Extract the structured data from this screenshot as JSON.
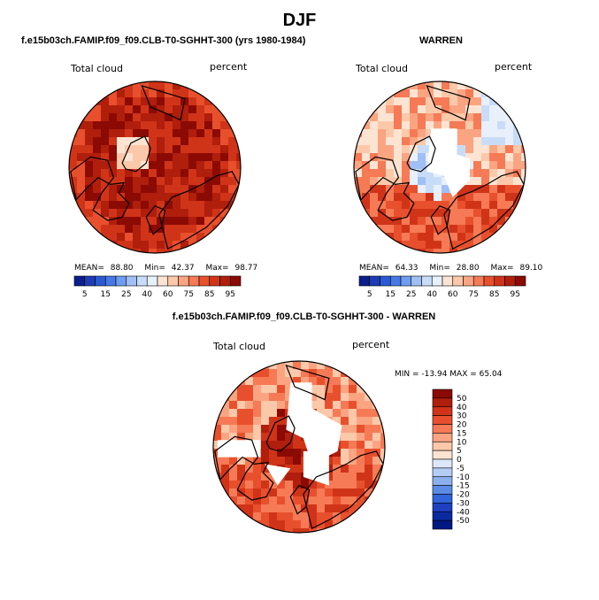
{
  "main_title": "DJF",
  "panels": {
    "model": {
      "title": "f.e15b03ch.FAMIP.f09_f09.CLB-T0-SGHHT-300 (yrs 1980-1984)",
      "variable": "Total cloud",
      "units": "percent",
      "stats": {
        "mean_label": "MEAN=",
        "mean": "88.80",
        "min_label": "Min=",
        "min": "42.37",
        "max_label": "Max=",
        "max": "98.77"
      }
    },
    "obs": {
      "title": "WARREN",
      "variable": "Total cloud",
      "units": "percent",
      "stats": {
        "mean_label": "MEAN=",
        "mean": "64.33",
        "min_label": "Min=",
        "min": "28.80",
        "max_label": "Max=",
        "max": "89.10"
      }
    },
    "diff": {
      "title": "f.e15b03ch.FAMIP.f09_f09.CLB-T0-SGHHT-300 - WARREN",
      "variable": "Total cloud",
      "units": "percent",
      "minmax_text": "MIN = -13.94 MAX =  65.04"
    }
  },
  "chart_data": [
    {
      "type": "heatmap",
      "title": "f.e15b03ch.FAMIP.f09_f09.CLB-T0-SGHHT-300 (yrs 1980-1984)",
      "projection": "north polar stereographic",
      "variable": "Total cloud",
      "units": "percent",
      "mean": 88.8,
      "min": 42.37,
      "max": 98.77,
      "colorbar_ticks": [
        "5",
        "15",
        "25",
        "40",
        "60",
        "75",
        "85",
        "95"
      ],
      "colorbar_colors": [
        "#0a1e8c",
        "#1e3cb4",
        "#2a5ad2",
        "#4678e6",
        "#6e9cf0",
        "#a0c0f5",
        "#c8dcf8",
        "#e8f0fc",
        "#fde4d2",
        "#fcc8aa",
        "#fba482",
        "#f57a55",
        "#e8502d",
        "#d03418",
        "#b01e0c",
        "#8c0a04"
      ]
    },
    {
      "type": "heatmap",
      "title": "WARREN",
      "projection": "north polar stereographic",
      "variable": "Total cloud",
      "units": "percent",
      "mean": 64.33,
      "min": 28.8,
      "max": 89.1,
      "colorbar_ticks": [
        "5",
        "15",
        "25",
        "40",
        "60",
        "75",
        "85",
        "95"
      ],
      "colorbar_colors": [
        "#0a1e8c",
        "#1e3cb4",
        "#2a5ad2",
        "#4678e6",
        "#6e9cf0",
        "#a0c0f5",
        "#c8dcf8",
        "#e8f0fc",
        "#fde4d2",
        "#fcc8aa",
        "#fba482",
        "#f57a55",
        "#e8502d",
        "#d03418",
        "#b01e0c",
        "#8c0a04"
      ]
    },
    {
      "type": "heatmap",
      "title": "f.e15b03ch.FAMIP.f09_f09.CLB-T0-SGHHT-300 - WARREN",
      "projection": "north polar stereographic",
      "variable": "Total cloud",
      "units": "percent",
      "min": -13.94,
      "max": 65.04,
      "colorbar_ticks": [
        "50",
        "40",
        "30",
        "20",
        "15",
        "10",
        "5",
        "0",
        "-5",
        "-10",
        "-15",
        "-20",
        "-30",
        "-40",
        "-50"
      ],
      "colorbar_colors": [
        "#8c0a04",
        "#b01e0c",
        "#d03418",
        "#e8502d",
        "#f57a55",
        "#fba482",
        "#fcc8aa",
        "#fde4d2",
        "#dce8fa",
        "#b4cdf5",
        "#8cb0ee",
        "#5a8ce6",
        "#3264dc",
        "#1e40c0",
        "#0c2aa0",
        "#001882"
      ]
    }
  ]
}
